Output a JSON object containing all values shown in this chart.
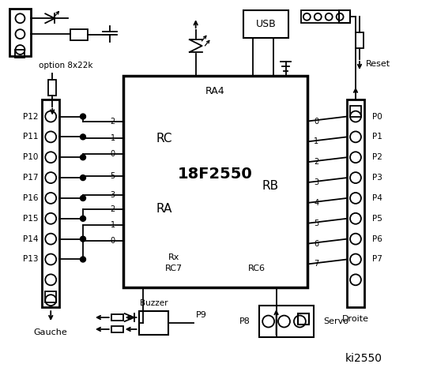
{
  "bg": "#ffffff",
  "lc": "#000000",
  "left_labels": [
    "P12",
    "P11",
    "P10",
    "P17",
    "P16",
    "P15",
    "P14",
    "P13"
  ],
  "right_labels": [
    "P0",
    "P1",
    "P2",
    "P3",
    "P4",
    "P5",
    "P6",
    "P7"
  ],
  "rc_pins": [
    "2",
    "1",
    "0"
  ],
  "ra_pins": [
    "5",
    "3",
    "2",
    "1",
    "0"
  ],
  "rb_pins": [
    "0",
    "1",
    "2",
    "3",
    "4",
    "5",
    "6",
    "7"
  ],
  "main_label": "18F2550",
  "ra4_label": "RA4",
  "rc_label": "RC",
  "ra_label": "RA",
  "rb_label": "RB",
  "rx_label": "Rx",
  "rc7_label": "RC7",
  "rc6_label": "RC6",
  "usb_label": "USB",
  "reset_label": "Reset",
  "option_label": "option 8x22k",
  "gauche_label": "Gauche",
  "droite_label": "Droite",
  "buzzer_label": "Buzzer",
  "p9_label": "P9",
  "p8_label": "P8",
  "servo_label": "Servo",
  "ki_label": "ki2550"
}
